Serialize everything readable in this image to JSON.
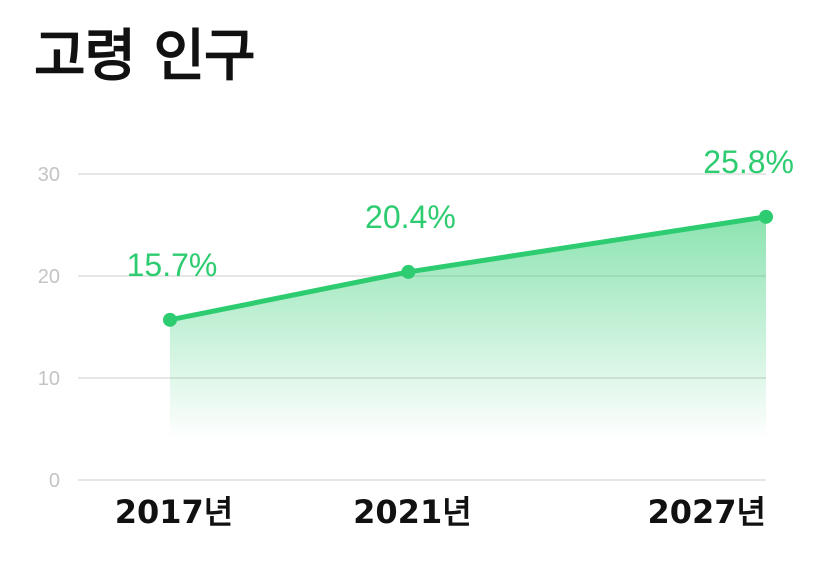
{
  "title": "고령 인구",
  "colors": {
    "accent": "#2ecc71",
    "grid": "#e6e6e6",
    "tick_text": "#c4c4c4",
    "label_text": "#111111"
  },
  "chart_data": {
    "type": "area",
    "title": "고령 인구",
    "categories": [
      "2017년",
      "2021년",
      "2027년"
    ],
    "x": [
      2017,
      2021,
      2027
    ],
    "series": [
      {
        "values": [
          15.7,
          20.4,
          25.8
        ],
        "data_labels": [
          "15.7%",
          "20.4%",
          "25.8%"
        ]
      }
    ],
    "ylim": [
      0,
      30
    ],
    "yticks": [
      "0",
      "10",
      "20",
      "30"
    ],
    "grid": true,
    "xlabel": "",
    "ylabel": ""
  }
}
